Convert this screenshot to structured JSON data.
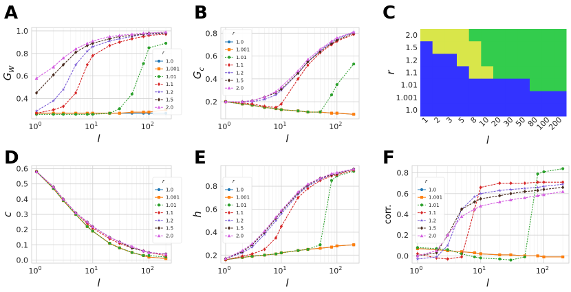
{
  "figure": {
    "panel_letters": [
      "A",
      "B",
      "C",
      "D",
      "E",
      "F"
    ]
  },
  "style": {
    "series_colors": [
      "#1f77b4",
      "#ff7f0e",
      "#2ca02c",
      "#d62728",
      "#7a5cd6",
      "#4a2c20",
      "#d45fe0"
    ],
    "heat_colors": {
      "blue": "#3333ff",
      "yellow": "#d9e64a",
      "green": "#33cc4d"
    }
  },
  "chart_data": [
    {
      "panel": "A",
      "type": "line",
      "xscale": "log",
      "xlim": [
        0.82,
        250
      ],
      "ylim": [
        0.22,
        1.03
      ],
      "xlabel": "l",
      "ylabel": "G",
      "ylabel_sub": "W",
      "xticks": [
        {
          "v": 1,
          "b": "10",
          "e": "0"
        },
        {
          "v": 10,
          "b": "10",
          "e": "1"
        },
        {
          "v": 100,
          "b": "10",
          "e": "2"
        }
      ],
      "yticks": [
        {
          "v": 0.4,
          "label": "0.4"
        },
        {
          "v": 0.6,
          "label": "0.6"
        },
        {
          "v": 0.8,
          "label": "0.8"
        },
        {
          "v": 1.0,
          "label": "1.0"
        }
      ],
      "legend": {
        "title": "r",
        "position": "right"
      },
      "x": [
        1,
        2,
        3,
        5,
        8,
        10,
        20,
        30,
        50,
        80,
        100,
        200
      ],
      "series": [
        {
          "name": "1.0",
          "values": [
            0.27,
            0.27,
            0.27,
            0.27,
            0.27,
            0.27,
            0.27,
            0.27,
            0.27,
            0.27,
            0.27,
            0.27
          ]
        },
        {
          "name": "1.001",
          "values": [
            0.27,
            0.27,
            0.27,
            0.27,
            0.27,
            0.27,
            0.27,
            0.27,
            0.28,
            0.28,
            0.28,
            0.3
          ]
        },
        {
          "name": "1.01",
          "values": [
            0.26,
            0.26,
            0.26,
            0.26,
            0.26,
            0.26,
            0.27,
            0.31,
            0.44,
            0.71,
            0.85,
            0.89
          ]
        },
        {
          "name": "1.1",
          "values": [
            0.27,
            0.3,
            0.33,
            0.45,
            0.7,
            0.78,
            0.87,
            0.9,
            0.93,
            0.95,
            0.96,
            0.97
          ]
        },
        {
          "name": "1.2",
          "values": [
            0.29,
            0.38,
            0.48,
            0.7,
            0.82,
            0.86,
            0.91,
            0.93,
            0.95,
            0.97,
            0.97,
            0.98
          ]
        },
        {
          "name": "1.5",
          "values": [
            0.45,
            0.61,
            0.7,
            0.81,
            0.87,
            0.89,
            0.93,
            0.95,
            0.96,
            0.97,
            0.98,
            0.98
          ]
        },
        {
          "name": "2.0",
          "values": [
            0.58,
            0.68,
            0.76,
            0.84,
            0.89,
            0.91,
            0.95,
            0.96,
            0.97,
            0.98,
            0.98,
            0.99
          ]
        }
      ]
    },
    {
      "panel": "B",
      "type": "line",
      "xscale": "log",
      "xlim": [
        0.82,
        250
      ],
      "ylim": [
        0.05,
        0.85
      ],
      "xlabel": "l",
      "ylabel": "G",
      "ylabel_sub": "c",
      "xticks": [
        {
          "v": 1,
          "b": "10",
          "e": "0"
        },
        {
          "v": 10,
          "b": "10",
          "e": "1"
        },
        {
          "v": 100,
          "b": "10",
          "e": "2"
        }
      ],
      "yticks": [
        {
          "v": 0.2,
          "label": "0.2"
        },
        {
          "v": 0.4,
          "label": "0.4"
        },
        {
          "v": 0.6,
          "label": "0.6"
        },
        {
          "v": 0.8,
          "label": "0.8"
        }
      ],
      "legend": {
        "title": "r",
        "position": "left"
      },
      "x": [
        1,
        2,
        3,
        5,
        8,
        10,
        20,
        30,
        50,
        80,
        100,
        200
      ],
      "series": [
        {
          "name": "1.0",
          "values": [
            0.2,
            0.18,
            0.17,
            0.15,
            0.14,
            0.13,
            0.12,
            0.11,
            0.11,
            0.1,
            0.1,
            0.09
          ]
        },
        {
          "name": "1.001",
          "values": [
            0.2,
            0.18,
            0.17,
            0.15,
            0.14,
            0.13,
            0.12,
            0.11,
            0.11,
            0.1,
            0.1,
            0.09
          ]
        },
        {
          "name": "1.01",
          "values": [
            0.2,
            0.18,
            0.17,
            0.15,
            0.14,
            0.13,
            0.12,
            0.11,
            0.11,
            0.26,
            0.35,
            0.53
          ]
        },
        {
          "name": "1.1",
          "values": [
            0.2,
            0.19,
            0.18,
            0.16,
            0.15,
            0.18,
            0.4,
            0.52,
            0.63,
            0.7,
            0.73,
            0.79
          ]
        },
        {
          "name": "1.2",
          "values": [
            0.2,
            0.2,
            0.2,
            0.22,
            0.26,
            0.3,
            0.45,
            0.55,
            0.65,
            0.72,
            0.75,
            0.81
          ]
        },
        {
          "name": "1.5",
          "values": [
            0.2,
            0.2,
            0.21,
            0.24,
            0.28,
            0.31,
            0.45,
            0.55,
            0.64,
            0.71,
            0.74,
            0.8
          ]
        },
        {
          "name": "2.0",
          "values": [
            0.2,
            0.2,
            0.21,
            0.24,
            0.29,
            0.33,
            0.47,
            0.57,
            0.66,
            0.73,
            0.76,
            0.81
          ]
        }
      ]
    },
    {
      "panel": "C",
      "type": "heatmap",
      "xlabel": "l",
      "ylabel": "r",
      "x_labels": [
        "1",
        "2",
        "3",
        "5",
        "8",
        "10",
        "20",
        "30",
        "50",
        "80",
        "100",
        "200"
      ],
      "y_labels": [
        "2.0",
        "1.5",
        "1.2",
        "1.1",
        "1.01",
        "1.001",
        "1.0"
      ],
      "legend": "0 = blue, 1 = yellow, 2 = green",
      "cells": [
        [
          1,
          1,
          1,
          1,
          2,
          2,
          2,
          2,
          2,
          2,
          2,
          2
        ],
        [
          0,
          1,
          1,
          1,
          1,
          2,
          2,
          2,
          2,
          2,
          2,
          2
        ],
        [
          0,
          0,
          0,
          1,
          1,
          2,
          2,
          2,
          2,
          2,
          2,
          2
        ],
        [
          0,
          0,
          0,
          0,
          1,
          1,
          2,
          2,
          2,
          2,
          2,
          2
        ],
        [
          0,
          0,
          0,
          0,
          0,
          0,
          0,
          0,
          0,
          2,
          2,
          2
        ],
        [
          0,
          0,
          0,
          0,
          0,
          0,
          0,
          0,
          0,
          0,
          0,
          0
        ],
        [
          0,
          0,
          0,
          0,
          0,
          0,
          0,
          0,
          0,
          0,
          0,
          0
        ]
      ]
    },
    {
      "panel": "D",
      "type": "line",
      "xscale": "log",
      "xlim": [
        0.82,
        250
      ],
      "ylim": [
        -0.02,
        0.62
      ],
      "xlabel": "l",
      "ylabel": "c",
      "xticks": [
        {
          "v": 1,
          "b": "10",
          "e": "0"
        },
        {
          "v": 10,
          "b": "10",
          "e": "1"
        },
        {
          "v": 100,
          "b": "10",
          "e": "2"
        }
      ],
      "yticks": [
        {
          "v": 0.0,
          "label": "0.0"
        },
        {
          "v": 0.1,
          "label": "0.1"
        },
        {
          "v": 0.2,
          "label": "0.2"
        },
        {
          "v": 0.3,
          "label": "0.3"
        },
        {
          "v": 0.4,
          "label": "0.4"
        },
        {
          "v": 0.5,
          "label": "0.5"
        },
        {
          "v": 0.6,
          "label": "0.6"
        }
      ],
      "legend": {
        "title": "r",
        "position": "right"
      },
      "x": [
        1,
        2,
        3,
        5,
        8,
        10,
        20,
        30,
        50,
        80,
        100,
        200
      ],
      "series": [
        {
          "name": "1.0",
          "values": [
            0.58,
            0.47,
            0.39,
            0.3,
            0.22,
            0.19,
            0.11,
            0.08,
            0.05,
            0.03,
            0.02,
            0.01
          ]
        },
        {
          "name": "1.001",
          "values": [
            0.58,
            0.47,
            0.39,
            0.3,
            0.22,
            0.19,
            0.11,
            0.08,
            0.05,
            0.03,
            0.02,
            0.01
          ]
        },
        {
          "name": "1.01",
          "values": [
            0.58,
            0.47,
            0.39,
            0.3,
            0.22,
            0.19,
            0.11,
            0.08,
            0.05,
            0.03,
            0.03,
            0.02
          ]
        },
        {
          "name": "1.1",
          "values": [
            0.58,
            0.48,
            0.4,
            0.31,
            0.24,
            0.21,
            0.14,
            0.11,
            0.08,
            0.06,
            0.05,
            0.03
          ]
        },
        {
          "name": "1.2",
          "values": [
            0.58,
            0.48,
            0.4,
            0.31,
            0.25,
            0.22,
            0.15,
            0.12,
            0.08,
            0.06,
            0.05,
            0.04
          ]
        },
        {
          "name": "1.5",
          "values": [
            0.58,
            0.48,
            0.4,
            0.31,
            0.25,
            0.22,
            0.15,
            0.12,
            0.08,
            0.06,
            0.05,
            0.04
          ]
        },
        {
          "name": "2.0",
          "values": [
            0.58,
            0.48,
            0.4,
            0.31,
            0.25,
            0.22,
            0.15,
            0.12,
            0.09,
            0.06,
            0.05,
            0.04
          ]
        }
      ]
    },
    {
      "panel": "E",
      "type": "line",
      "xscale": "log",
      "xlim": [
        0.82,
        250
      ],
      "ylim": [
        0.13,
        0.98
      ],
      "xlabel": "l",
      "ylabel": "h",
      "xticks": [
        {
          "v": 1,
          "b": "10",
          "e": "0"
        },
        {
          "v": 10,
          "b": "10",
          "e": "1"
        },
        {
          "v": 100,
          "b": "10",
          "e": "2"
        }
      ],
      "yticks": [
        {
          "v": 0.2,
          "label": "0.2"
        },
        {
          "v": 0.4,
          "label": "0.4"
        },
        {
          "v": 0.6,
          "label": "0.6"
        },
        {
          "v": 0.8,
          "label": "0.8"
        }
      ],
      "legend": {
        "title": "r",
        "position": "left"
      },
      "x": [
        1,
        2,
        3,
        5,
        8,
        10,
        20,
        30,
        50,
        80,
        100,
        200
      ],
      "series": [
        {
          "name": "1.0",
          "values": [
            0.16,
            0.18,
            0.19,
            0.2,
            0.21,
            0.22,
            0.24,
            0.25,
            0.26,
            0.27,
            0.28,
            0.29
          ]
        },
        {
          "name": "1.001",
          "values": [
            0.16,
            0.18,
            0.19,
            0.2,
            0.21,
            0.22,
            0.24,
            0.25,
            0.26,
            0.27,
            0.28,
            0.29
          ]
        },
        {
          "name": "1.01",
          "values": [
            0.16,
            0.18,
            0.19,
            0.2,
            0.21,
            0.22,
            0.24,
            0.25,
            0.29,
            0.85,
            0.89,
            0.93
          ]
        },
        {
          "name": "1.1",
          "values": [
            0.16,
            0.19,
            0.21,
            0.25,
            0.35,
            0.45,
            0.7,
            0.78,
            0.85,
            0.89,
            0.9,
            0.94
          ]
        },
        {
          "name": "1.2",
          "values": [
            0.17,
            0.22,
            0.27,
            0.38,
            0.5,
            0.56,
            0.73,
            0.8,
            0.86,
            0.9,
            0.91,
            0.95
          ]
        },
        {
          "name": "1.5",
          "values": [
            0.17,
            0.23,
            0.29,
            0.4,
            0.52,
            0.58,
            0.74,
            0.81,
            0.87,
            0.9,
            0.91,
            0.95
          ]
        },
        {
          "name": "2.0",
          "values": [
            0.17,
            0.24,
            0.3,
            0.41,
            0.53,
            0.59,
            0.75,
            0.82,
            0.87,
            0.91,
            0.92,
            0.95
          ]
        }
      ]
    },
    {
      "panel": "F",
      "type": "line",
      "xscale": "log",
      "xlim": [
        0.82,
        250
      ],
      "ylim": [
        -0.07,
        0.87
      ],
      "xlabel": "l",
      "ylabel": "corr.",
      "xticks": [
        {
          "v": 1,
          "b": "10",
          "e": "0"
        },
        {
          "v": 10,
          "b": "10",
          "e": "1"
        },
        {
          "v": 100,
          "b": "10",
          "e": "2"
        }
      ],
      "yticks": [
        {
          "v": 0.0,
          "label": "0.0"
        },
        {
          "v": 0.2,
          "label": "0.2"
        },
        {
          "v": 0.4,
          "label": "0.4"
        },
        {
          "v": 0.6,
          "label": "0.6"
        },
        {
          "v": 0.8,
          "label": "0.8"
        }
      ],
      "legend": {
        "title": "r",
        "position": "left"
      },
      "x": [
        1,
        2,
        3,
        5,
        8,
        10,
        20,
        30,
        50,
        80,
        100,
        200
      ],
      "series": [
        {
          "name": "1.0",
          "values": [
            0.07,
            0.06,
            0.05,
            0.04,
            0.03,
            0.02,
            0.01,
            0.01,
            0.0,
            0.0,
            -0.01,
            -0.01
          ]
        },
        {
          "name": "1.001",
          "values": [
            0.07,
            0.06,
            0.05,
            0.04,
            0.03,
            0.02,
            0.01,
            0.01,
            0.0,
            0.0,
            -0.01,
            -0.01
          ]
        },
        {
          "name": "1.01",
          "values": [
            0.08,
            0.07,
            0.06,
            0.02,
            -0.01,
            -0.02,
            -0.03,
            -0.04,
            -0.01,
            0.79,
            0.81,
            0.84
          ]
        },
        {
          "name": "1.1",
          "values": [
            0.02,
            -0.02,
            -0.03,
            -0.01,
            0.45,
            0.66,
            0.7,
            0.7,
            0.7,
            0.71,
            0.71,
            0.71
          ]
        },
        {
          "name": "1.2",
          "values": [
            -0.03,
            -0.01,
            0.1,
            0.45,
            0.57,
            0.6,
            0.63,
            0.64,
            0.65,
            0.66,
            0.67,
            0.69
          ]
        },
        {
          "name": "1.5",
          "values": [
            0.0,
            0.03,
            0.2,
            0.45,
            0.52,
            0.55,
            0.58,
            0.6,
            0.62,
            0.63,
            0.64,
            0.66
          ]
        },
        {
          "name": "2.0",
          "values": [
            0.0,
            0.05,
            0.2,
            0.38,
            0.45,
            0.48,
            0.52,
            0.54,
            0.56,
            0.58,
            0.59,
            0.62
          ]
        }
      ]
    }
  ]
}
